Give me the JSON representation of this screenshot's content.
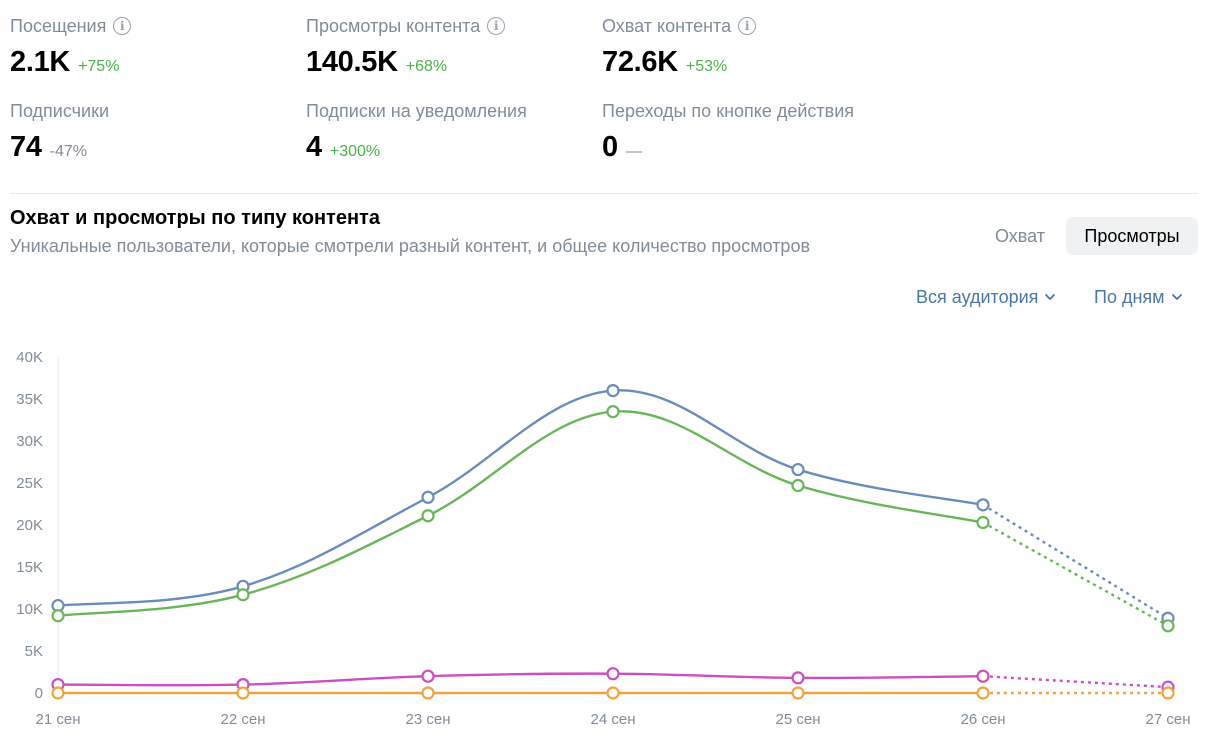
{
  "stats": [
    {
      "label": "Посещения",
      "info": true,
      "value": "2.1K",
      "delta": "+75%",
      "delta_type": "pos"
    },
    {
      "label": "Просмотры контента",
      "info": true,
      "value": "140.5K",
      "delta": "+68%",
      "delta_type": "pos"
    },
    {
      "label": "Охват контента",
      "info": true,
      "value": "72.6K",
      "delta": "+53%",
      "delta_type": "pos"
    },
    {
      "label": "Подписчики",
      "info": false,
      "value": "74",
      "delta": "-47%",
      "delta_type": "neg"
    },
    {
      "label": "Подписки на уведомления",
      "info": false,
      "value": "4",
      "delta": "+300%",
      "delta_type": "pos"
    },
    {
      "label": "Переходы по кнопке действия",
      "info": false,
      "value": "0",
      "delta": "—",
      "delta_type": "none"
    }
  ],
  "info_glyph": "i",
  "section": {
    "title": "Охват и просмотры по типу контента",
    "subtitle": "Уникальные пользователи, которые смотрели разный контент, и общее количество просмотров"
  },
  "toggle": {
    "reach_label": "Охват",
    "views_label": "Просмотры",
    "selected": "views"
  },
  "filters": {
    "audience_label": "Вся аудитория",
    "period_label": "По дням"
  },
  "colors": {
    "blue": "#6b8cbc",
    "green": "#6ab55a",
    "magenta": "#cc4fc0",
    "orange": "#f0a440",
    "axis": "#e7e8ec",
    "accent": "#4a76a8"
  },
  "chart_data": {
    "type": "line",
    "categories": [
      "21 сен",
      "22 сен",
      "23 сен",
      "24 сен",
      "25 сен",
      "26 сен",
      "27 сен"
    ],
    "yticks": [
      "0",
      "5K",
      "10K",
      "15K",
      "20K",
      "25K",
      "30K",
      "35K",
      "40K"
    ],
    "ylim": [
      0,
      40000
    ],
    "series": [
      {
        "color": "#6b8cbc",
        "values": [
          10400,
          12700,
          23300,
          36000,
          26600,
          22400,
          8900
        ],
        "projected_from_index": 5
      },
      {
        "color": "#6ab55a",
        "values": [
          9200,
          11700,
          21100,
          33500,
          24700,
          20300,
          8000
        ],
        "projected_from_index": 5
      },
      {
        "color": "#cc4fc0",
        "values": [
          1000,
          1000,
          2000,
          2300,
          1800,
          2000,
          700
        ],
        "projected_from_index": 5
      },
      {
        "color": "#f0a440",
        "values": [
          0,
          0,
          0,
          0,
          0,
          0,
          0
        ],
        "projected_from_index": 5
      }
    ]
  }
}
